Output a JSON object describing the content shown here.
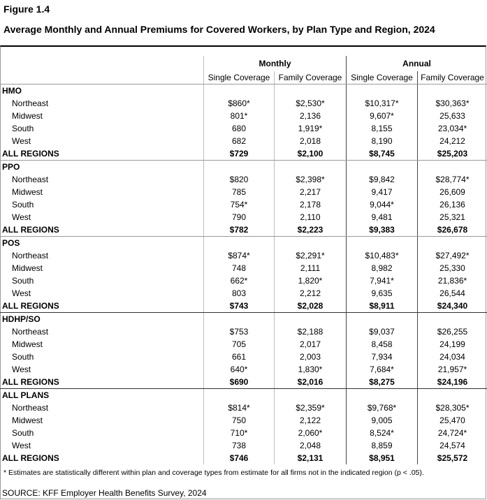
{
  "figure_label": "Figure 1.4",
  "title": "Average Monthly and Annual Premiums for Covered Workers, by Plan Type and Region, 2024",
  "header": {
    "groups": [
      "Monthly",
      "Annual"
    ],
    "columns": [
      "Single Coverage",
      "Family Coverage",
      "Single Coverage",
      "Family Coverage"
    ]
  },
  "sections": [
    {
      "plan": "HMO",
      "rows": [
        {
          "region": "Northeast",
          "values": [
            "$860*",
            "$2,530*",
            "$10,317*",
            "$30,363*"
          ]
        },
        {
          "region": "Midwest",
          "values": [
            "801*",
            "2,136",
            "9,607*",
            "25,633"
          ]
        },
        {
          "region": "South",
          "values": [
            "680",
            "1,919*",
            "8,155",
            "23,034*"
          ]
        },
        {
          "region": "West",
          "values": [
            "682",
            "2,018",
            "8,190",
            "24,212"
          ]
        },
        {
          "region": "ALL REGIONS",
          "values": [
            "$729",
            "$2,100",
            "$8,745",
            "$25,203"
          ]
        }
      ]
    },
    {
      "plan": "PPO",
      "rows": [
        {
          "region": "Northeast",
          "values": [
            "$820",
            "$2,398*",
            "$9,842",
            "$28,774*"
          ]
        },
        {
          "region": "Midwest",
          "values": [
            "785",
            "2,217",
            "9,417",
            "26,609"
          ]
        },
        {
          "region": "South",
          "values": [
            "754*",
            "2,178",
            "9,044*",
            "26,136"
          ]
        },
        {
          "region": "West",
          "values": [
            "790",
            "2,110",
            "9,481",
            "25,321"
          ]
        },
        {
          "region": "ALL REGIONS",
          "values": [
            "$782",
            "$2,223",
            "$9,383",
            "$26,678"
          ]
        }
      ]
    },
    {
      "plan": "POS",
      "rows": [
        {
          "region": "Northeast",
          "values": [
            "$874*",
            "$2,291*",
            "$10,483*",
            "$27,492*"
          ]
        },
        {
          "region": "Midwest",
          "values": [
            "748",
            "2,111",
            "8,982",
            "25,330"
          ]
        },
        {
          "region": "South",
          "values": [
            "662*",
            "1,820*",
            "7,941*",
            "21,836*"
          ]
        },
        {
          "region": "West",
          "values": [
            "803",
            "2,212",
            "9,635",
            "26,544"
          ]
        },
        {
          "region": "ALL REGIONS",
          "values": [
            "$743",
            "$2,028",
            "$8,911",
            "$24,340"
          ]
        }
      ]
    },
    {
      "plan": "HDHP/SO",
      "rows": [
        {
          "region": "Northeast",
          "values": [
            "$753",
            "$2,188",
            "$9,037",
            "$26,255"
          ]
        },
        {
          "region": "Midwest",
          "values": [
            "705",
            "2,017",
            "8,458",
            "24,199"
          ]
        },
        {
          "region": "South",
          "values": [
            "661",
            "2,003",
            "7,934",
            "24,034"
          ]
        },
        {
          "region": "West",
          "values": [
            "640*",
            "1,830*",
            "7,684*",
            "21,957*"
          ]
        },
        {
          "region": "ALL REGIONS",
          "values": [
            "$690",
            "$2,016",
            "$8,275",
            "$24,196"
          ]
        }
      ]
    },
    {
      "plan": "ALL PLANS",
      "rows": [
        {
          "region": "Northeast",
          "values": [
            "$814*",
            "$2,359*",
            "$9,768*",
            "$28,305*"
          ]
        },
        {
          "region": "Midwest",
          "values": [
            "750",
            "2,122",
            "9,005",
            "25,470"
          ]
        },
        {
          "region": "South",
          "values": [
            "710*",
            "2,060*",
            "8,524*",
            "24,724*"
          ]
        },
        {
          "region": "West",
          "values": [
            "738",
            "2,048",
            "8,859",
            "24,574"
          ]
        },
        {
          "region": "ALL REGIONS",
          "values": [
            "$746",
            "$2,131",
            "$8,951",
            "$25,572"
          ]
        }
      ]
    }
  ],
  "footnote": "* Estimates are statistically different within plan and coverage types from estimate for all firms not in the indicated region (p < .05).",
  "source": "SOURCE: KFF Employer Health Benefits Survey, 2024"
}
